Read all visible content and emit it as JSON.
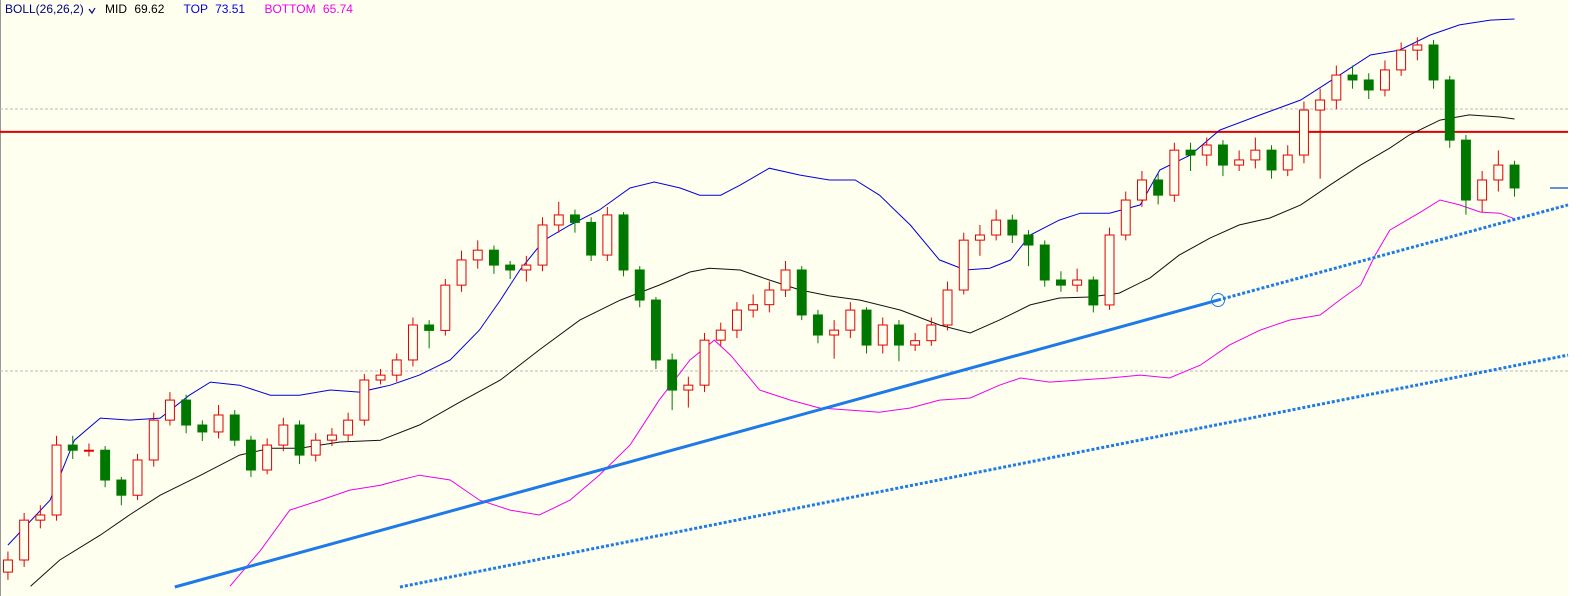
{
  "chart_data": {
    "type": "candlestick",
    "indicator": {
      "name": "BOLL(26,26,2)",
      "mid": {
        "label": "MID",
        "value": 69.62,
        "color": "#000000"
      },
      "top": {
        "label": "TOP",
        "value": 73.51,
        "color": "#0000dd"
      },
      "bottom": {
        "label": "BOTTOM",
        "value": 65.74,
        "color": "#ee00ee"
      }
    },
    "up_color": "#e00000",
    "down_color": "#007800",
    "open": [
      52.0,
      52.47,
      54.02,
      54.22,
      56.94,
      56.74,
      56.74,
      55.58,
      54.99,
      56.36,
      57.91,
      58.69,
      57.72,
      57.45,
      58.11,
      57.13,
      55.97,
      56.94,
      57.72,
      56.55,
      57.13,
      57.33,
      57.91,
      59.47,
      59.66,
      60.25,
      61.61,
      61.4,
      63.16,
      64.14,
      64.52,
      63.94,
      63.75,
      63.94,
      65.5,
      65.89,
      65.6,
      64.33,
      65.89,
      63.75,
      62.58,
      60.25,
      59.08,
      59.27,
      61.02,
      61.41,
      62.19,
      62.4,
      62.97,
      63.75,
      62.0,
      61.22,
      61.41,
      62.19,
      60.83,
      61.61,
      60.83,
      61.0,
      61.61,
      62.97,
      64.91,
      65.11,
      65.69,
      65.11,
      64.72,
      63.36,
      63.16,
      63.36,
      62.39,
      65.11,
      66.47,
      67.25,
      66.66,
      68.41,
      68.22,
      68.61,
      67.83,
      68.03,
      68.41,
      67.64,
      68.22,
      69.97,
      70.36,
      71.33,
      71.14,
      70.75,
      71.53,
      72.3,
      72.5,
      71.14,
      68.8,
      66.47,
      67.25,
      67.83
    ],
    "high": [
      52.8,
      54.3,
      54.6,
      57.3,
      57.3,
      57.0,
      56.9,
      55.7,
      56.6,
      58.2,
      59.0,
      58.9,
      57.9,
      58.5,
      58.3,
      57.3,
      57.2,
      58.0,
      57.9,
      57.4,
      57.6,
      58.2,
      59.7,
      59.9,
      60.5,
      61.9,
      61.8,
      63.4,
      64.5,
      64.9,
      64.7,
      64.1,
      64.3,
      65.8,
      66.4,
      66.1,
      65.8,
      66.2,
      66.0,
      63.9,
      62.7,
      60.5,
      59.6,
      61.3,
      61.7,
      62.5,
      62.8,
      63.3,
      64.1,
      63.9,
      62.2,
      61.8,
      62.5,
      62.3,
      61.9,
      61.8,
      61.3,
      61.9,
      63.3,
      65.2,
      65.5,
      66.1,
      65.9,
      65.3,
      64.9,
      63.7,
      63.8,
      63.5,
      65.4,
      66.8,
      67.6,
      67.5,
      68.7,
      68.7,
      68.9,
      68.8,
      68.4,
      68.9,
      68.6,
      68.6,
      70.3,
      70.8,
      71.7,
      71.7,
      71.4,
      71.9,
      72.6,
      72.8,
      72.7,
      71.3,
      69.0,
      67.6,
      68.4,
      68.0
    ],
    "low": [
      51.7,
      52.2,
      53.7,
      54.0,
      56.4,
      56.5,
      55.3,
      54.6,
      54.8,
      56.1,
      57.7,
      57.4,
      57.1,
      57.2,
      56.9,
      55.7,
      55.8,
      56.7,
      56.2,
      56.3,
      56.9,
      57.1,
      57.7,
      59.3,
      59.4,
      60.0,
      60.7,
      61.2,
      62.9,
      63.8,
      63.6,
      63.4,
      63.3,
      63.7,
      65.2,
      65.2,
      64.1,
      64.1,
      63.5,
      62.3,
      59.9,
      58.3,
      58.4,
      59.0,
      60.8,
      61.1,
      61.9,
      62.1,
      62.7,
      61.8,
      60.9,
      60.3,
      61.1,
      60.5,
      60.5,
      60.2,
      60.6,
      60.8,
      61.4,
      62.8,
      64.3,
      64.9,
      64.8,
      63.9,
      63.1,
      62.9,
      62.9,
      62.1,
      62.2,
      64.9,
      66.2,
      66.3,
      66.4,
      67.6,
      67.8,
      67.4,
      67.6,
      67.7,
      67.3,
      67.4,
      67.9,
      67.3,
      70.0,
      70.8,
      70.4,
      70.5,
      71.3,
      71.9,
      70.8,
      68.5,
      65.9,
      66.0,
      66.8,
      66.6
    ],
    "close": [
      52.47,
      54.02,
      54.22,
      56.94,
      56.74,
      56.74,
      55.58,
      54.99,
      56.36,
      57.91,
      58.69,
      57.72,
      57.45,
      58.11,
      57.13,
      55.97,
      56.94,
      57.72,
      56.55,
      57.13,
      57.33,
      57.91,
      59.47,
      59.66,
      60.25,
      61.61,
      61.4,
      63.16,
      64.14,
      64.52,
      63.94,
      63.75,
      63.94,
      65.5,
      65.89,
      65.6,
      64.33,
      65.89,
      63.75,
      62.58,
      60.25,
      59.08,
      59.27,
      61.02,
      61.41,
      62.19,
      62.4,
      62.97,
      63.75,
      62.0,
      61.22,
      61.41,
      62.19,
      60.83,
      61.61,
      60.83,
      61.0,
      61.61,
      62.97,
      64.91,
      65.11,
      65.69,
      65.11,
      64.72,
      63.36,
      63.16,
      63.36,
      62.39,
      65.11,
      66.47,
      67.25,
      66.66,
      68.41,
      68.22,
      68.61,
      67.83,
      68.03,
      68.41,
      67.64,
      68.22,
      69.97,
      70.36,
      71.33,
      71.14,
      70.75,
      71.53,
      72.3,
      72.5,
      71.14,
      68.8,
      66.47,
      67.25,
      67.83,
      66.94
    ],
    "bands": [
      {
        "color": "#0000dd",
        "x": [
          0,
          2.6,
          4.1,
          5.7,
          7.5,
          9.4,
          11.2,
          12.5,
          14.3,
          16.2,
          18.0,
          19.9,
          21.7,
          23.6,
          25.4,
          27.3,
          29.1,
          30.4,
          31.6,
          33.1,
          34.7,
          36.5,
          38.4,
          39.9,
          41.5,
          42.7,
          44.0,
          45.2,
          47.0,
          48.9,
          50.7,
          52.3,
          53.8,
          55.7,
          57.5,
          59.1,
          60.6,
          61.9,
          63.1,
          64.9,
          66.2,
          68.0,
          69.9,
          71.1,
          73.0,
          74.8,
          77.3,
          79.8,
          82.2,
          84.1,
          85.9,
          87.8,
          89.6,
          91.5,
          93.0
        ],
        "values": [
          53.05,
          54.8,
          57.13,
          57.99,
          57.91,
          57.99,
          58.88,
          59.39,
          59.27,
          58.88,
          58.88,
          59.08,
          59.0,
          59.27,
          59.66,
          60.25,
          61.41,
          62.58,
          63.75,
          64.91,
          65.5,
          66.08,
          66.94,
          67.17,
          66.94,
          66.66,
          66.66,
          67.05,
          67.71,
          67.44,
          67.25,
          67.25,
          66.66,
          65.5,
          64.14,
          63.75,
          63.82,
          64.14,
          65.11,
          65.69,
          65.96,
          65.96,
          66.28,
          67.64,
          68.22,
          69.19,
          69.78,
          70.36,
          71.33,
          72.11,
          72.3,
          72.89,
          73.28,
          73.47,
          73.51
        ]
      },
      {
        "color": "#111111",
        "x": [
          1.4,
          3.2,
          5.7,
          7.5,
          9.4,
          11.9,
          14.3,
          16.2,
          18.0,
          20.5,
          23.0,
          25.4,
          27.9,
          30.4,
          32.8,
          35.3,
          37.8,
          40.2,
          42.1,
          43.3,
          45.2,
          47.0,
          48.9,
          50.7,
          52.6,
          55.1,
          57.5,
          59.4,
          61.2,
          63.1,
          64.9,
          66.8,
          68.6,
          70.5,
          72.3,
          74.2,
          76.0,
          77.9,
          79.8,
          81.6,
          83.5,
          85.3,
          86.5,
          88.4,
          90.2,
          92.1,
          93.0
        ],
        "values": [
          51.45,
          52.47,
          53.44,
          54.22,
          54.99,
          55.77,
          56.55,
          56.82,
          56.82,
          57.06,
          57.13,
          57.72,
          58.61,
          59.47,
          60.64,
          61.8,
          62.58,
          63.16,
          63.67,
          63.82,
          63.75,
          63.36,
          62.97,
          62.74,
          62.58,
          62.19,
          61.61,
          61.3,
          61.8,
          62.39,
          62.66,
          62.7,
          62.85,
          63.44,
          64.33,
          64.99,
          65.5,
          65.77,
          66.28,
          67.05,
          67.83,
          68.49,
          69.0,
          69.58,
          69.78,
          69.7,
          69.62
        ]
      },
      {
        "color": "#ee00ee",
        "x": [
          13.7,
          15.6,
          17.4,
          19.3,
          21.1,
          23.0,
          24.2,
          25.4,
          27.3,
          29.1,
          31.0,
          32.8,
          34.7,
          36.5,
          38.4,
          40.2,
          42.1,
          43.6,
          44.6,
          46.4,
          48.3,
          50.1,
          52.0,
          53.8,
          55.7,
          57.5,
          59.4,
          61.2,
          62.5,
          64.3,
          66.2,
          68.0,
          69.9,
          71.7,
          73.6,
          75.4,
          77.3,
          79.1,
          81.0,
          82.2,
          83.5,
          84.4,
          85.3,
          87.2,
          88.4,
          89.6,
          90.9,
          92.1,
          93.0
        ],
        "values": [
          51.45,
          52.85,
          54.41,
          54.8,
          55.19,
          55.38,
          55.58,
          55.77,
          55.58,
          54.8,
          54.41,
          54.22,
          54.8,
          55.77,
          56.94,
          58.69,
          60.25,
          61.02,
          60.44,
          59.08,
          58.69,
          58.38,
          58.3,
          58.22,
          58.38,
          58.69,
          58.77,
          59.27,
          59.55,
          59.39,
          59.47,
          59.55,
          59.66,
          59.55,
          60.05,
          60.83,
          61.41,
          61.8,
          62.0,
          62.58,
          63.16,
          64.33,
          65.3,
          66.0,
          66.47,
          66.28,
          66.0,
          65.96,
          65.74
        ]
      }
    ],
    "trendlines": [
      {
        "x": [
          10.3,
          74.7
        ],
        "values": [
          51.42,
          62.58
        ],
        "color": "#1e7ae6",
        "style": "solid",
        "handle": true
      },
      {
        "x": [
          74.7,
          96.3
        ],
        "values": [
          62.58,
          66.28
        ],
        "color": "#1e7ae6",
        "style": "dotted"
      },
      {
        "x": [
          24.2,
          96.3
        ],
        "values": [
          51.42,
          60.44
        ],
        "color": "#1e7ae6",
        "style": "dotted"
      }
    ],
    "hlines": [
      {
        "value": 69.12,
        "color": "#e00000",
        "style": "solid"
      },
      {
        "value": 70.01,
        "color": "#bbbbbb",
        "style": "dotted"
      },
      {
        "value": 59.82,
        "color": "#bbbbbb",
        "style": "dotted"
      }
    ],
    "last_price": {
      "value": 66.94,
      "color": "#2b6fd6"
    },
    "xlim": [
      -0.49,
      96.3
    ],
    "ylim": [
      51.07,
      74.25
    ]
  }
}
